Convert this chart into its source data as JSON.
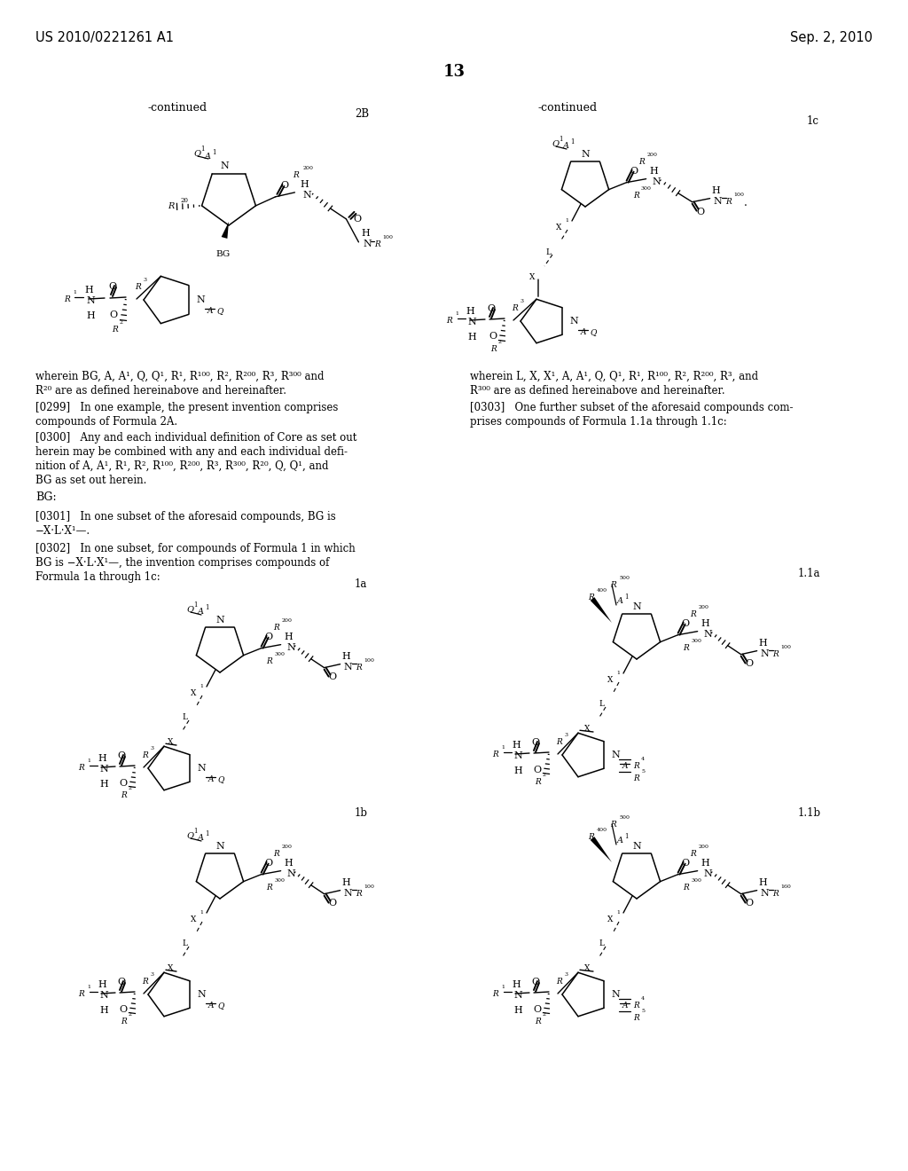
{
  "page_number": "13",
  "header_left": "US 2010/0221261 A1",
  "header_right": "Sep. 2, 2010",
  "background_color": "#ffffff",
  "text_color": "#000000"
}
